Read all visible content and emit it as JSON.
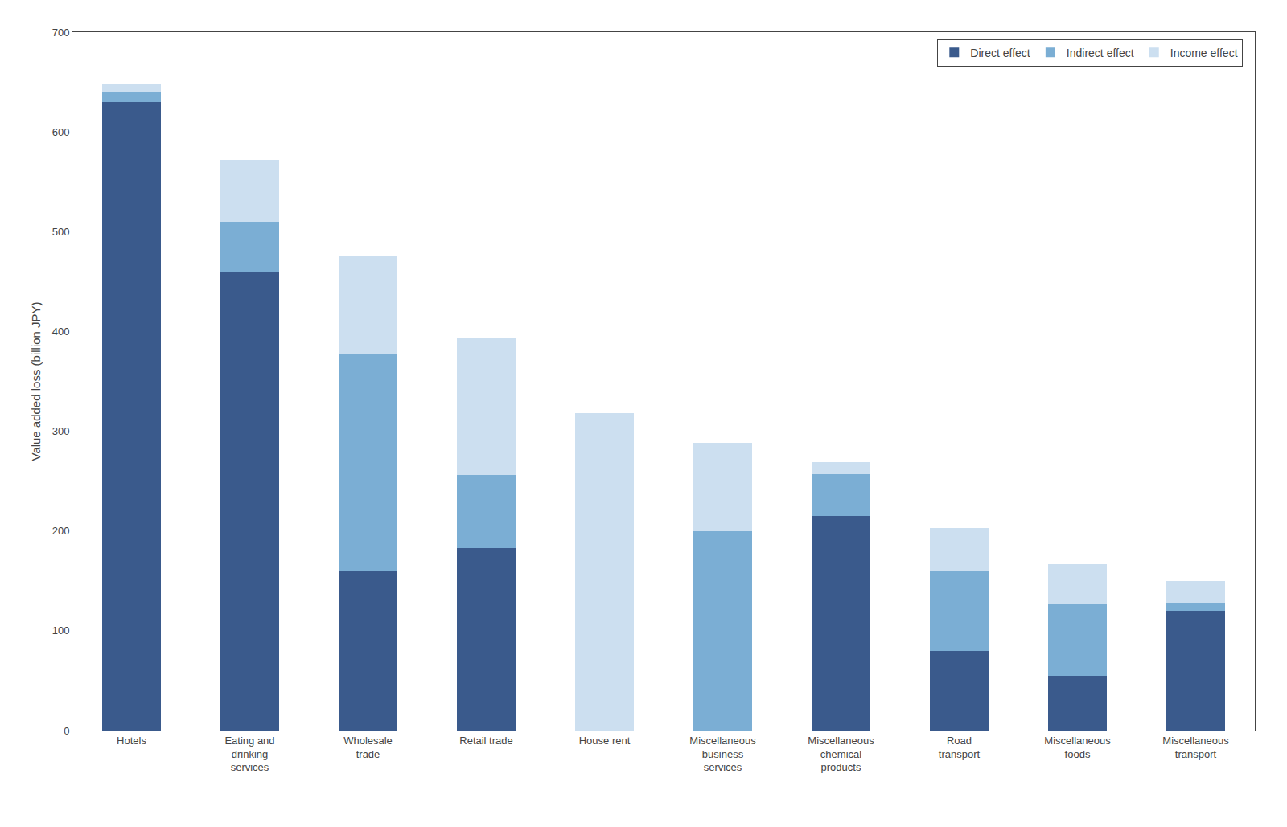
{
  "chart_data": {
    "type": "bar",
    "categories": [
      "Hotels",
      "Eating and\ndrinking\nservices",
      "Wholesale\ntrade",
      "Retail trade",
      "House rent",
      "Miscellaneous\nbusiness\nservices",
      "Miscellaneous\nchemical\nproducts",
      "Road\ntransport",
      "Miscellaneous\nfoods",
      "Miscellaneous\ntransport"
    ],
    "series": [
      {
        "name": "Direct effect",
        "color": "#3A5A8C",
        "values": [
          630,
          460,
          160,
          183,
          0,
          0,
          215,
          80,
          55,
          120
        ]
      },
      {
        "name": "Indirect effect",
        "color": "#7BAED4",
        "values": [
          10,
          50,
          218,
          73,
          0,
          200,
          42,
          80,
          72,
          8
        ]
      },
      {
        "name": "Income effect",
        "color": "#CCDFF0",
        "values": [
          8,
          62,
          97,
          137,
          318,
          88,
          12,
          43,
          40,
          22
        ]
      }
    ],
    "ylabel": "Value added loss (billion JPY)",
    "ylim": [
      0,
      700
    ],
    "yticks": [
      0,
      100,
      200,
      300,
      400,
      500,
      600,
      700
    ],
    "stacked": true,
    "grid": false,
    "legend": "upper right"
  }
}
